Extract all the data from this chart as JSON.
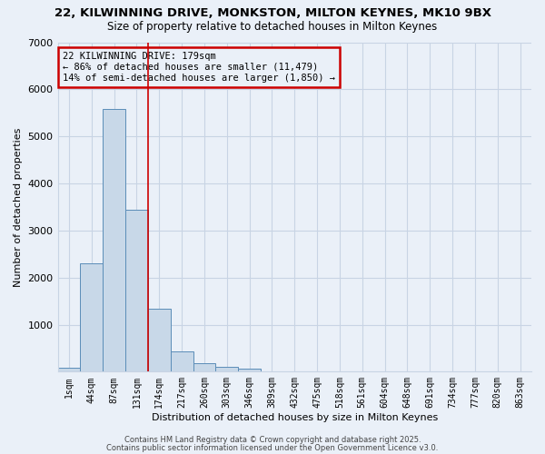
{
  "title_line1": "22, KILWINNING DRIVE, MONKSTON, MILTON KEYNES, MK10 9BX",
  "title_line2": "Size of property relative to detached houses in Milton Keynes",
  "xlabel": "Distribution of detached houses by size in Milton Keynes",
  "ylabel": "Number of detached properties",
  "categories": [
    "1sqm",
    "44sqm",
    "87sqm",
    "131sqm",
    "174sqm",
    "217sqm",
    "260sqm",
    "303sqm",
    "346sqm",
    "389sqm",
    "432sqm",
    "475sqm",
    "518sqm",
    "561sqm",
    "604sqm",
    "648sqm",
    "691sqm",
    "734sqm",
    "777sqm",
    "820sqm",
    "863sqm"
  ],
  "values": [
    75,
    2300,
    5580,
    3450,
    1340,
    430,
    175,
    95,
    60,
    0,
    0,
    0,
    0,
    0,
    0,
    0,
    0,
    0,
    0,
    0,
    0
  ],
  "bar_color": "#c8d8e8",
  "bar_edge_color": "#5b8db8",
  "vline_x": 4.0,
  "vline_color": "#cc0000",
  "annotation_text": "22 KILWINNING DRIVE: 179sqm\n← 86% of detached houses are smaller (11,479)\n14% of semi-detached houses are larger (1,850) →",
  "annotation_box_color": "#cc0000",
  "ylim": [
    0,
    7000
  ],
  "yticks": [
    0,
    1000,
    2000,
    3000,
    4000,
    5000,
    6000,
    7000
  ],
  "grid_color": "#c8d4e4",
  "bg_color": "#eaf0f8",
  "footer_line1": "Contains HM Land Registry data © Crown copyright and database right 2025.",
  "footer_line2": "Contains public sector information licensed under the Open Government Licence v3.0."
}
